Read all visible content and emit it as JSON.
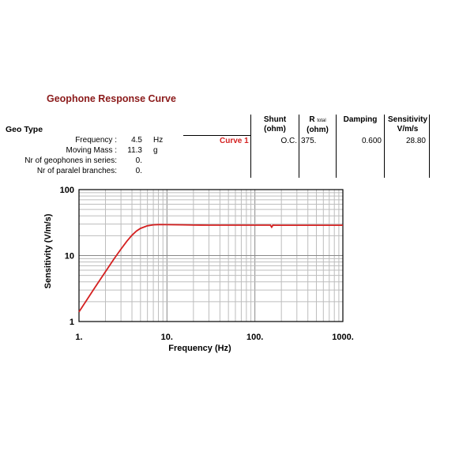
{
  "header": {
    "title": "Geophone Response Curve",
    "geo_type_label": "Geo Type"
  },
  "params": [
    {
      "label": "Frequency :",
      "value": "4.5",
      "unit": "Hz"
    },
    {
      "label": "Moving Mass :",
      "value": "11.3",
      "unit": "g"
    },
    {
      "label": "Nr of geophones in series:",
      "value": "0.",
      "unit": ""
    },
    {
      "label": "Nr of paralel branches:",
      "value": "0.",
      "unit": ""
    }
  ],
  "table": {
    "headers": {
      "shunt": "Shunt",
      "shunt_unit": "(ohm)",
      "rtotal": "R",
      "rtotal_sub": "total",
      "rtotal_unit": "(ohm)",
      "damping": "Damping",
      "sensitivity": "Sensitivity",
      "sensitivity_unit": "V/m/s"
    },
    "row": {
      "curve": "Curve 1",
      "shunt": "O.C.",
      "rtotal": "375.",
      "damping": "0.600",
      "sensitivity": "28.80"
    }
  },
  "colors": {
    "curve": "#d42020",
    "curve_label": "#d42020"
  },
  "chart_data": {
    "type": "line",
    "title": "",
    "xlabel": "Frequency (Hz)",
    "ylabel": "Sensitivity (V/m/s)",
    "x_scale": "log",
    "y_scale": "log",
    "xlim": [
      1,
      1000
    ],
    "ylim": [
      1,
      100
    ],
    "x_ticks": [
      "1.",
      "10.",
      "100.",
      "1000."
    ],
    "y_ticks": [
      "1",
      "10",
      "100"
    ],
    "grid": true,
    "series": [
      {
        "name": "Curve 1",
        "x": [
          1,
          1.5,
          2,
          2.5,
          3,
          3.5,
          4,
          4.5,
          5,
          6,
          7,
          8,
          10,
          15,
          20,
          30,
          50,
          100,
          150,
          155,
          160,
          170,
          200,
          300,
          500,
          1000
        ],
        "y": [
          1.4,
          3.2,
          5.7,
          8.9,
          12.5,
          16.5,
          20.3,
          23.5,
          25.8,
          28.3,
          29.2,
          29.5,
          29.4,
          29.2,
          29.0,
          28.9,
          28.9,
          28.9,
          28.9,
          27.0,
          28.9,
          28.85,
          28.85,
          28.85,
          28.85,
          28.85
        ]
      }
    ]
  }
}
